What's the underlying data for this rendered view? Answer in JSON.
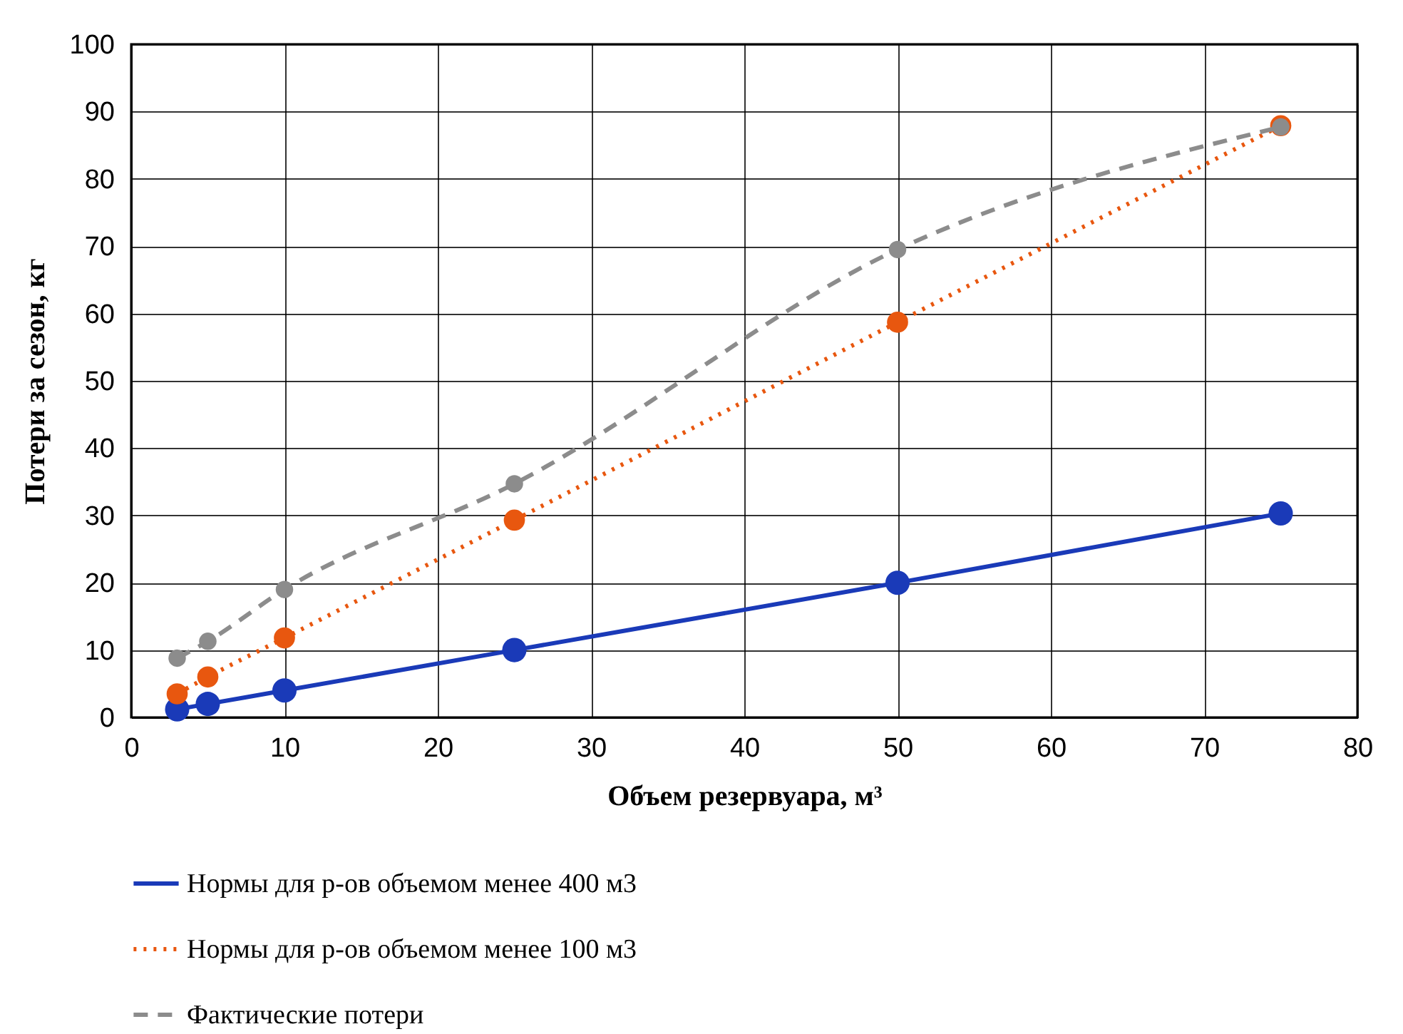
{
  "chart_data": {
    "type": "line",
    "xlabel": "Объем резервуара, м³",
    "ylabel": "Потери  за сезон, кг",
    "xlim": [
      0,
      80
    ],
    "ylim": [
      0,
      100
    ],
    "xticks": [
      0,
      10,
      20,
      30,
      40,
      50,
      60,
      70,
      80
    ],
    "yticks": [
      0,
      10,
      20,
      30,
      40,
      50,
      60,
      70,
      80,
      90,
      100
    ],
    "grid": true,
    "legend": "bottom",
    "marker": "circle",
    "x": [
      3,
      5,
      10,
      25,
      50,
      75
    ],
    "series": [
      {
        "name": "Нормы для р-ов объемом менее 400 м3",
        "color": "#1a3ab8",
        "line_style": "solid",
        "values": [
          1.2,
          2,
          4,
          10,
          20,
          30.3
        ]
      },
      {
        "name": "Нормы для р-ов объемом менее 100 м3",
        "color": "#e8570f",
        "line_style": "dotted",
        "values": [
          3.5,
          6,
          11.8,
          29.3,
          58.7,
          87.9
        ]
      },
      {
        "name": "Фактические потери",
        "color": "#8c8c8c",
        "line_style": "dashed",
        "values": [
          8.8,
          11.3,
          19,
          34.7,
          69.5,
          87.7
        ]
      }
    ]
  }
}
